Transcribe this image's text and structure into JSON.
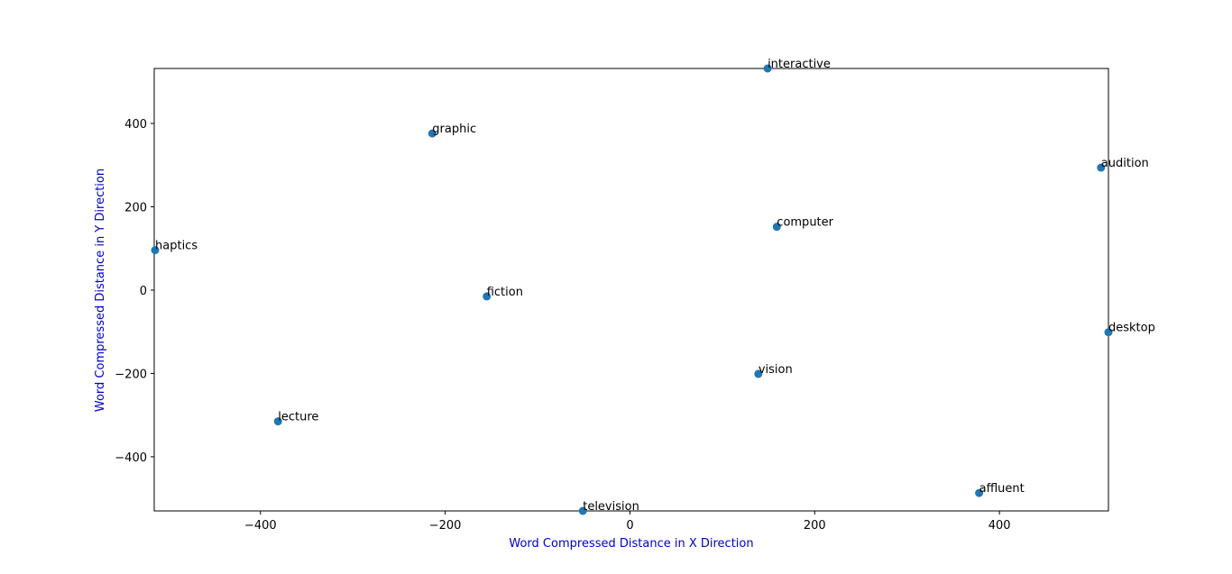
{
  "chart_data": {
    "type": "scatter",
    "title": "",
    "xlabel": "Word Compressed Distance in X Direction",
    "ylabel": "Word Compressed Distance in Y Direction",
    "xlim": [
      -515,
      518
    ],
    "ylim": [
      -530,
      532
    ],
    "xticks": [
      -400,
      -200,
      0,
      200,
      400
    ],
    "yticks": [
      -400,
      -200,
      0,
      200,
      400
    ],
    "grid": false,
    "points": [
      {
        "label": "interactive",
        "x": 149,
        "y": 532
      },
      {
        "label": "graphic",
        "x": -214,
        "y": 376
      },
      {
        "label": "audition",
        "x": 510,
        "y": 294
      },
      {
        "label": "computer",
        "x": 159,
        "y": 152
      },
      {
        "label": "haptics",
        "x": -514,
        "y": 96
      },
      {
        "label": "fiction",
        "x": -155,
        "y": -15
      },
      {
        "label": "desktop",
        "x": 518,
        "y": -101
      },
      {
        "label": "vision",
        "x": 139,
        "y": -201
      },
      {
        "label": "lecture",
        "x": -381,
        "y": -315
      },
      {
        "label": "affluent",
        "x": 378,
        "y": -487
      },
      {
        "label": "television",
        "x": -51,
        "y": -530
      }
    ]
  },
  "colors": {
    "marker": "#1f77b4",
    "axis_title": "#0000cc",
    "axes": "#000000"
  }
}
